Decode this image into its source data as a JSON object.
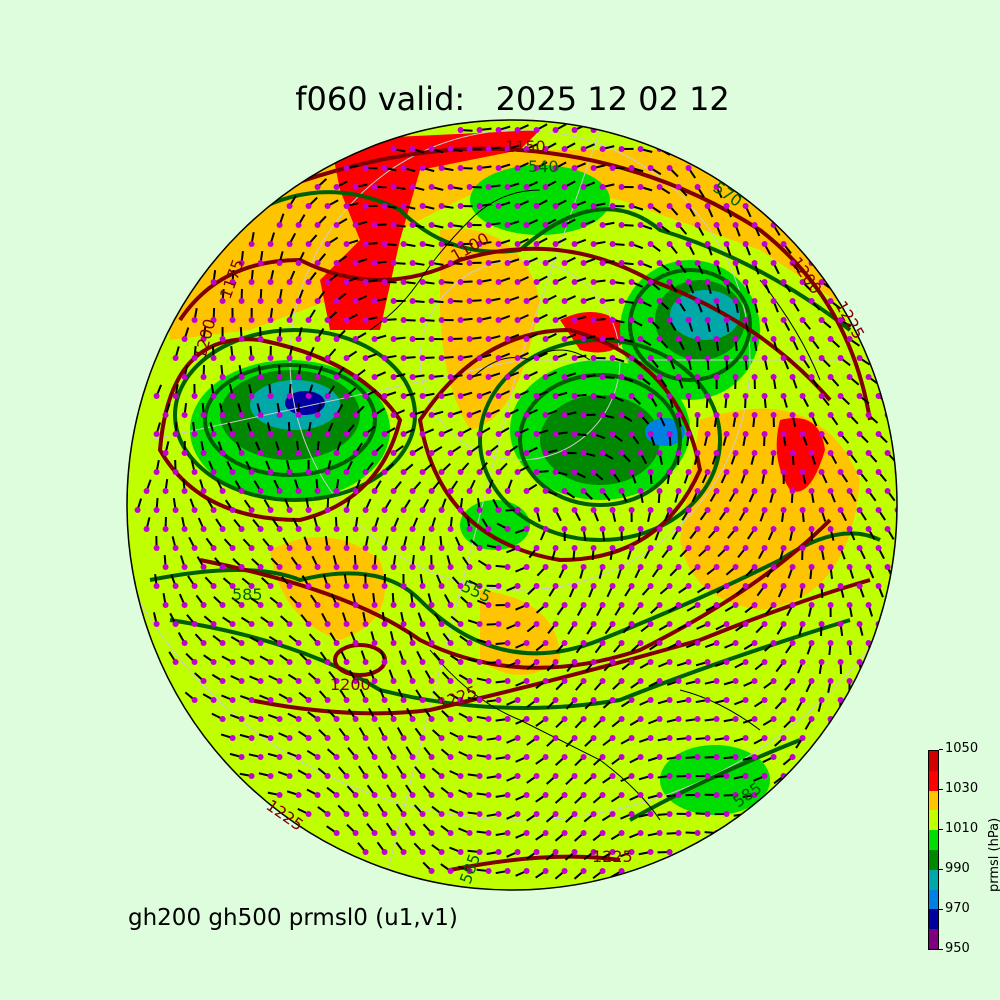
{
  "title": "f060 valid:   2025 12 02 12",
  "footer": "gh200 gh500 prmsl0 (u1,v1)",
  "colorbar": {
    "label": "prmsl (hPa)",
    "ticks": [
      "950",
      "970",
      "990",
      "1010",
      "1030",
      "1050"
    ],
    "bounds": [
      950,
      960,
      970,
      980,
      990,
      1000,
      1010,
      1020,
      1030,
      1040,
      1050
    ],
    "colors": [
      "#7f007f",
      "#0000a0",
      "#0080e0",
      "#00a8a8",
      "#008800",
      "#00dd00",
      "#bfff00",
      "#ffc400",
      "#ff0000",
      "#d00000"
    ]
  },
  "contour_colors": {
    "gh200": "#800000",
    "gh500": "#006000",
    "wind_dots": "#c000d0"
  },
  "contour_labels": {
    "l1150": "1150",
    "l540": "540",
    "l570": "570",
    "l1100": "1100",
    "l1200a": "1200",
    "l1225a": "1225",
    "l1175": "1175",
    "l1200b": "1200",
    "l585a": "585",
    "l555": "555",
    "l1200c": "1200",
    "l1225b": "1225",
    "l1225c": "1225",
    "l585b": "585",
    "l1225d": "1225",
    "l585c": "585"
  }
}
